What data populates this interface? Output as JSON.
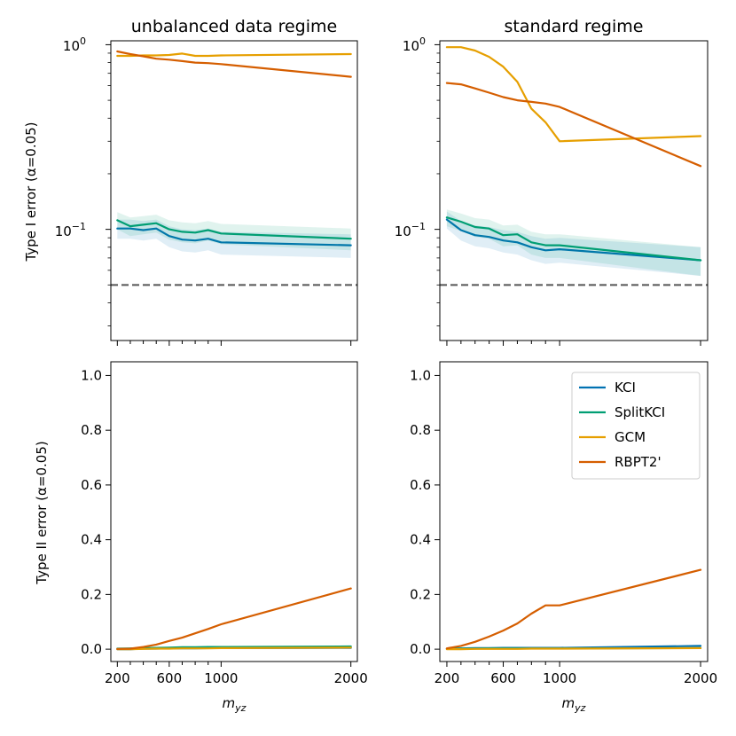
{
  "colors": {
    "KCI": "#0072b2",
    "SplitKCI": "#009e73",
    "GCM": "#e69f00",
    "RBPT2'": "#d55e00",
    "reference_line": "#555555"
  },
  "legend": [
    "KCI",
    "SplitKCI",
    "GCM",
    "RBPT2'"
  ],
  "chart_data": [
    {
      "id": "top-left",
      "type": "line",
      "title": "unbalanced data regime",
      "ylabel": "Type I error (α=0.05)",
      "xlabel": "",
      "yscale": "log",
      "ylim": [
        0.025,
        1.05
      ],
      "xlim": [
        150,
        2050
      ],
      "ytick_labels": [
        "10^0",
        "10^-1"
      ],
      "alpha_line": 0.05,
      "x": [
        200,
        300,
        400,
        500,
        600,
        700,
        800,
        900,
        1000,
        2000
      ],
      "series": [
        {
          "name": "KCI",
          "values": [
            0.101,
            0.101,
            0.099,
            0.101,
            0.092,
            0.088,
            0.087,
            0.089,
            0.085,
            0.082
          ],
          "band": 0.012
        },
        {
          "name": "SplitKCI",
          "values": [
            0.112,
            0.104,
            0.106,
            0.108,
            0.1,
            0.097,
            0.096,
            0.099,
            0.095,
            0.089
          ],
          "band": 0.012
        },
        {
          "name": "GCM",
          "values": [
            0.87,
            0.87,
            0.875,
            0.875,
            0.88,
            0.895,
            0.87,
            0.87,
            0.875,
            0.89
          ]
        },
        {
          "name": "RBPT2'",
          "values": [
            0.92,
            0.89,
            0.865,
            0.84,
            0.83,
            0.815,
            0.8,
            0.795,
            0.785,
            0.67
          ]
        }
      ]
    },
    {
      "id": "top-right",
      "type": "line",
      "title": "standard regime",
      "ylabel": "",
      "xlabel": "",
      "yscale": "log",
      "ylim": [
        0.025,
        1.05
      ],
      "xlim": [
        150,
        2050
      ],
      "ytick_labels": [
        "10^0",
        "10^-1"
      ],
      "alpha_line": 0.05,
      "x": [
        200,
        300,
        400,
        500,
        600,
        700,
        800,
        900,
        1000,
        2000
      ],
      "series": [
        {
          "name": "KCI",
          "values": [
            0.113,
            0.099,
            0.093,
            0.091,
            0.087,
            0.085,
            0.08,
            0.077,
            0.078,
            0.068
          ],
          "band": 0.012
        },
        {
          "name": "SplitKCI",
          "values": [
            0.116,
            0.11,
            0.103,
            0.101,
            0.093,
            0.094,
            0.085,
            0.082,
            0.082,
            0.068
          ],
          "band": 0.012
        },
        {
          "name": "GCM",
          "values": [
            0.97,
            0.97,
            0.93,
            0.86,
            0.76,
            0.63,
            0.45,
            0.38,
            0.3,
            0.32
          ]
        },
        {
          "name": "RBPT2'",
          "values": [
            0.62,
            0.61,
            0.58,
            0.55,
            0.52,
            0.5,
            0.49,
            0.48,
            0.46,
            0.22
          ]
        }
      ]
    },
    {
      "id": "bottom-left",
      "type": "line",
      "title": "",
      "ylabel": "Type II error (α=0.05)",
      "xlabel": "m_yz",
      "yscale": "linear",
      "ylim": [
        -0.045,
        1.05
      ],
      "xlim": [
        150,
        2050
      ],
      "yticks": [
        0.0,
        0.2,
        0.4,
        0.6,
        0.8,
        1.0
      ],
      "ytick_labels": [
        "0.0",
        "0.2",
        "0.4",
        "0.6",
        "0.8",
        "1.0"
      ],
      "xtick_labels": [
        "200",
        "600",
        "1000",
        "2000"
      ],
      "xtick_values": [
        200,
        600,
        1000,
        2000
      ],
      "x": [
        200,
        300,
        400,
        500,
        600,
        700,
        800,
        900,
        1000,
        2000
      ],
      "series": [
        {
          "name": "KCI",
          "values": [
            0.0,
            0.0,
            0.002,
            0.002,
            0.003,
            0.003,
            0.003,
            0.004,
            0.004,
            0.005
          ]
        },
        {
          "name": "SplitKCI",
          "values": [
            0.002,
            0.003,
            0.004,
            0.005,
            0.006,
            0.007,
            0.007,
            0.008,
            0.008,
            0.01
          ]
        },
        {
          "name": "GCM",
          "values": [
            0.0,
            0.0,
            0.001,
            0.002,
            0.002,
            0.003,
            0.003,
            0.003,
            0.004,
            0.006
          ]
        },
        {
          "name": "RBPT2'",
          "values": [
            0.001,
            0.002,
            0.008,
            0.017,
            0.03,
            0.042,
            0.058,
            0.074,
            0.091,
            0.222
          ]
        }
      ]
    },
    {
      "id": "bottom-right",
      "type": "line",
      "title": "",
      "ylabel": "",
      "xlabel": "m_yz",
      "yscale": "linear",
      "ylim": [
        -0.045,
        1.05
      ],
      "xlim": [
        150,
        2050
      ],
      "yticks": [
        0.0,
        0.2,
        0.4,
        0.6,
        0.8,
        1.0
      ],
      "ytick_labels": [
        "0.0",
        "0.2",
        "0.4",
        "0.6",
        "0.8",
        "1.0"
      ],
      "xtick_labels": [
        "200",
        "600",
        "1000",
        "2000"
      ],
      "xtick_values": [
        200,
        600,
        1000,
        2000
      ],
      "legend_position": "upper-right",
      "x": [
        200,
        300,
        400,
        500,
        600,
        700,
        800,
        900,
        1000,
        2000
      ],
      "series": [
        {
          "name": "KCI",
          "values": [
            0.002,
            0.003,
            0.004,
            0.004,
            0.005,
            0.005,
            0.005,
            0.005,
            0.005,
            0.012
          ]
        },
        {
          "name": "SplitKCI",
          "values": [
            0.001,
            0.002,
            0.002,
            0.003,
            0.003,
            0.003,
            0.003,
            0.003,
            0.003,
            0.004
          ]
        },
        {
          "name": "GCM",
          "values": [
            0.0,
            0.0,
            0.001,
            0.001,
            0.001,
            0.001,
            0.002,
            0.002,
            0.002,
            0.004
          ]
        },
        {
          "name": "RBPT2'",
          "values": [
            0.003,
            0.012,
            0.027,
            0.046,
            0.068,
            0.094,
            0.13,
            0.16,
            0.16,
            0.29
          ]
        }
      ]
    }
  ]
}
